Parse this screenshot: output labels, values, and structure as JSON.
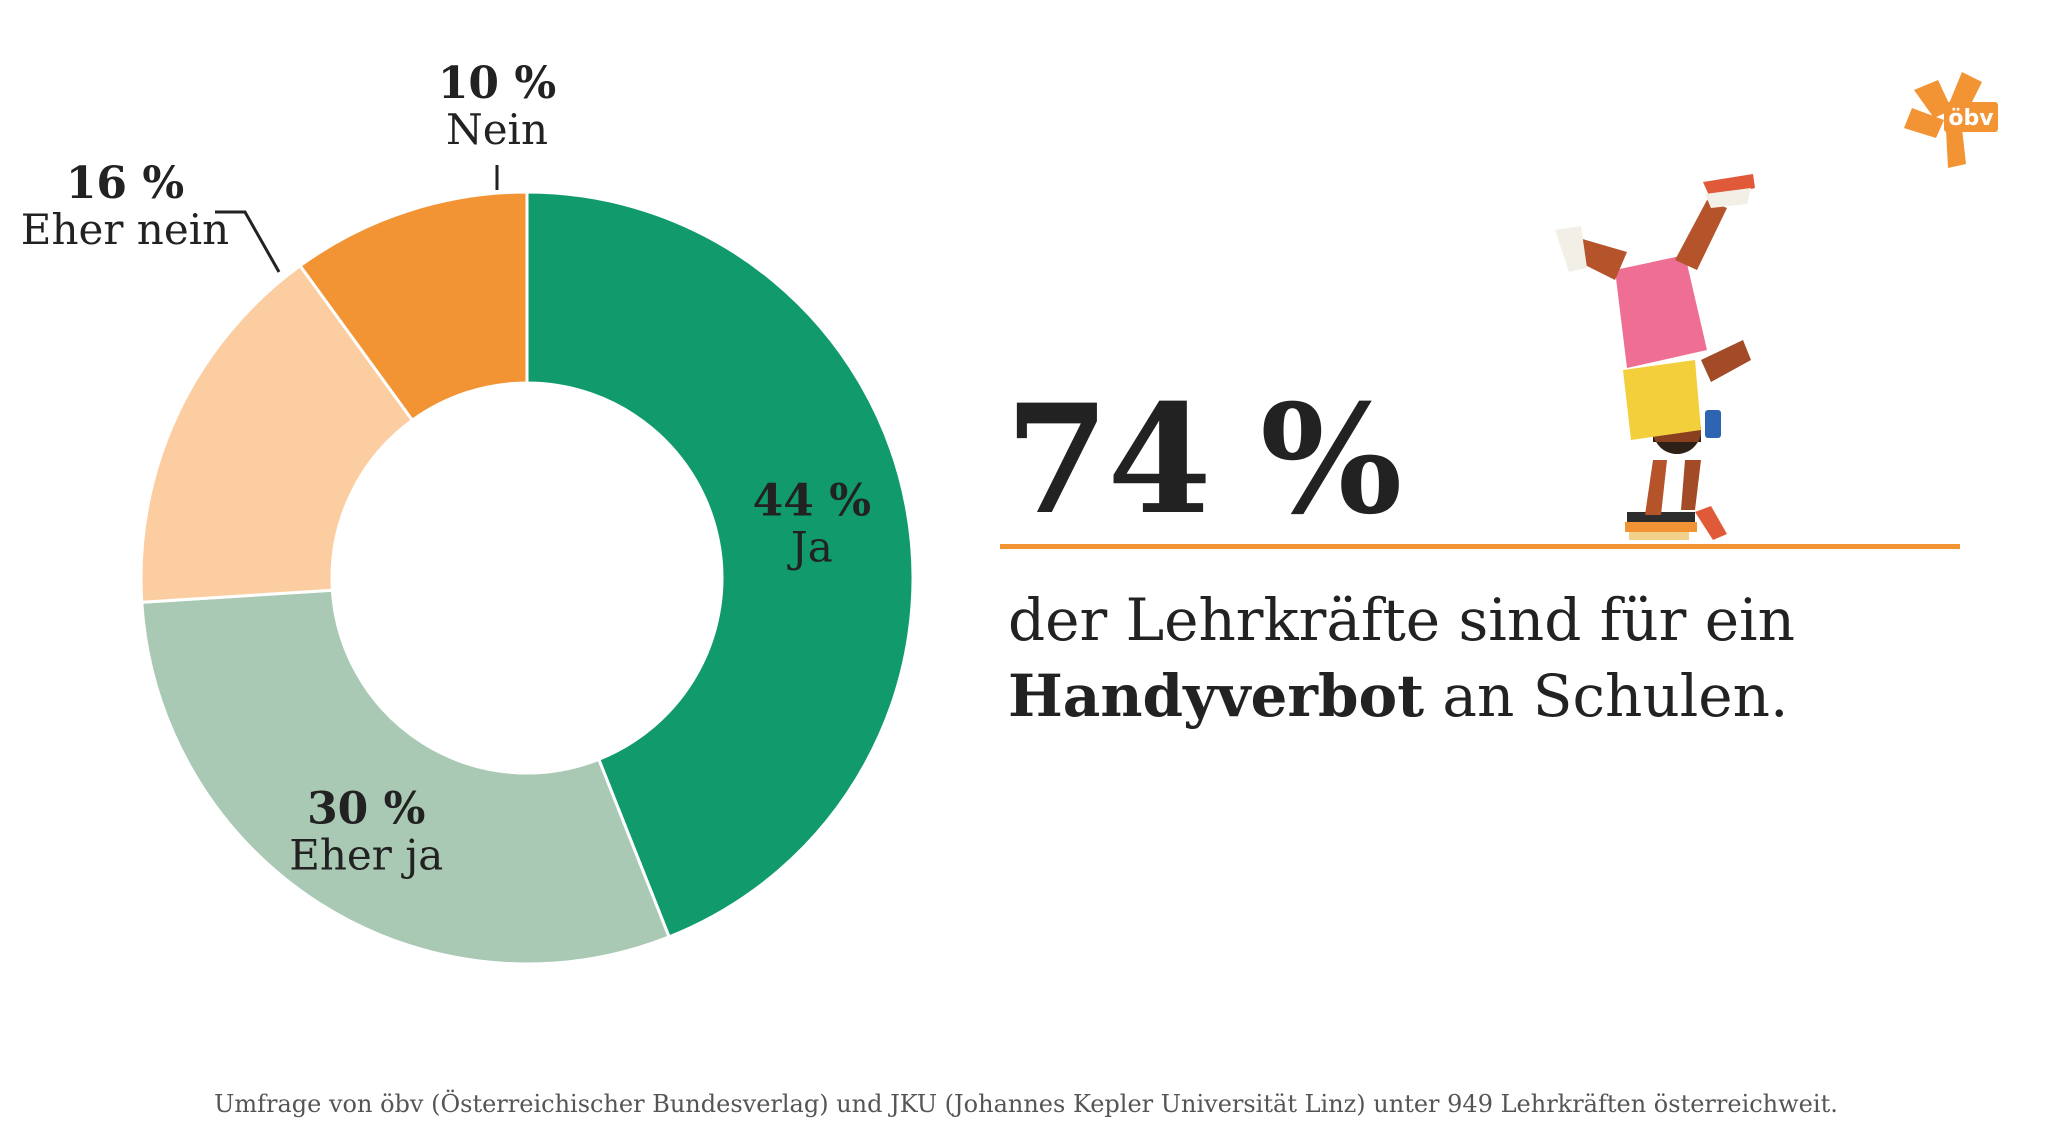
{
  "chart_data": {
    "type": "pie",
    "categories": [
      "Ja",
      "Eher ja",
      "Eher nein",
      "Nein"
    ],
    "values": [
      44,
      30,
      16,
      10
    ],
    "labels": [
      "44 %",
      "30 %",
      "16 %",
      "10 %"
    ],
    "colors": [
      "#119b6c",
      "#a9c9b5",
      "#fccda0",
      "#f39434"
    ],
    "title": "",
    "xlabel": "",
    "ylabel": "",
    "legend": "none"
  },
  "headline": {
    "value": "74 %",
    "line1": "der Lehrkräfte sind für ein",
    "line2_bold": "Handyverbot",
    "line2_rest": " an Schulen."
  },
  "logo": {
    "text": "öbv",
    "color": "#f39434"
  },
  "footnote": "Umfrage von öbv (Österreichischer Bundesverlag) und JKU (Johannes Kepler Universität Linz) unter 949 Lehrkräften österreichweit.",
  "illustration": {
    "icon": "handstand-person-illustration"
  }
}
